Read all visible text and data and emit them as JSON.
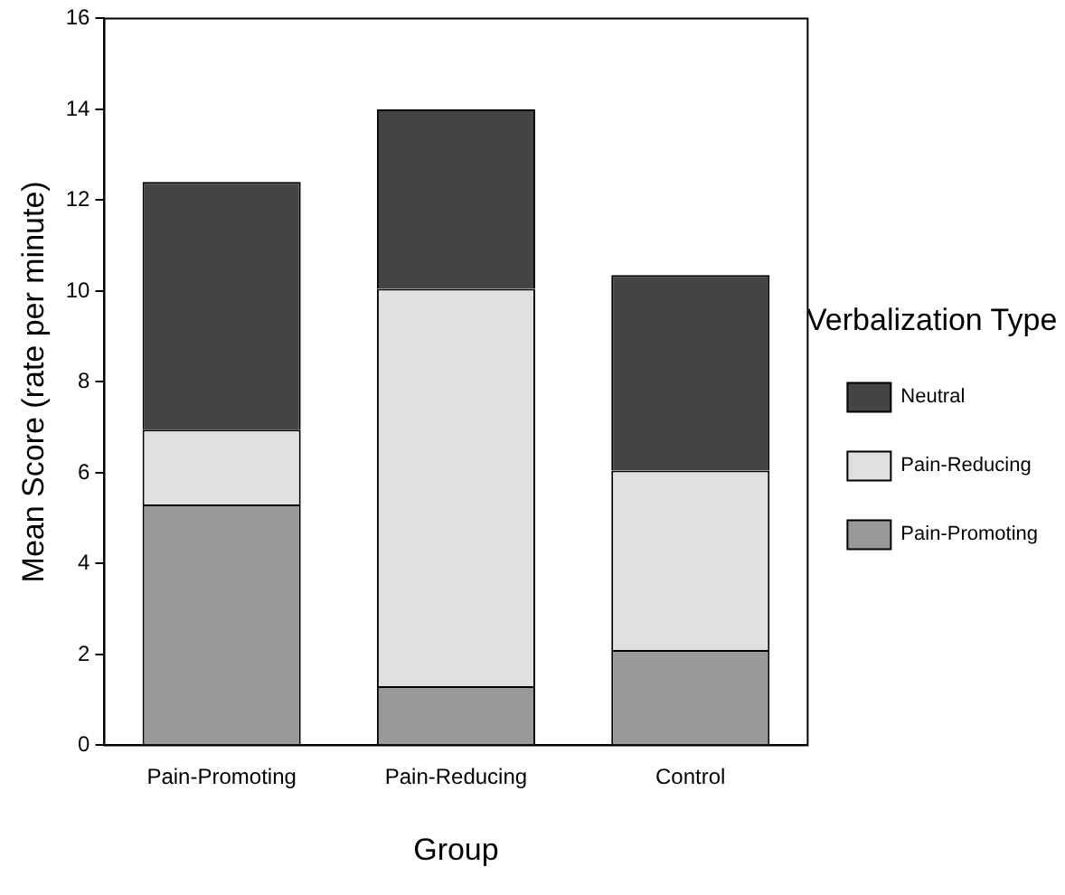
{
  "chart_data": {
    "type": "bar",
    "xlabel": "Group",
    "ylabel": "Mean Score (rate per minute)",
    "legend_title": "Verbalization Type",
    "categories": [
      "Pain-Promoting",
      "Pain-Reducing",
      "Control"
    ],
    "stacked": true,
    "series": [
      {
        "name": "Pain-Promoting",
        "color": "#999999",
        "values": [
          5.3,
          1.3,
          2.1
        ]
      },
      {
        "name": "Pain-Reducing",
        "color": "#e0e0e0",
        "values": [
          1.65,
          8.75,
          3.95
        ]
      },
      {
        "name": "Neutral",
        "color": "#444444",
        "values": [
          5.45,
          3.95,
          4.3
        ]
      }
    ],
    "ylim": [
      0,
      16
    ],
    "yticks": [
      0,
      2,
      4,
      6,
      8,
      10,
      12,
      14,
      16
    ],
    "grid": false,
    "legend": "right"
  }
}
